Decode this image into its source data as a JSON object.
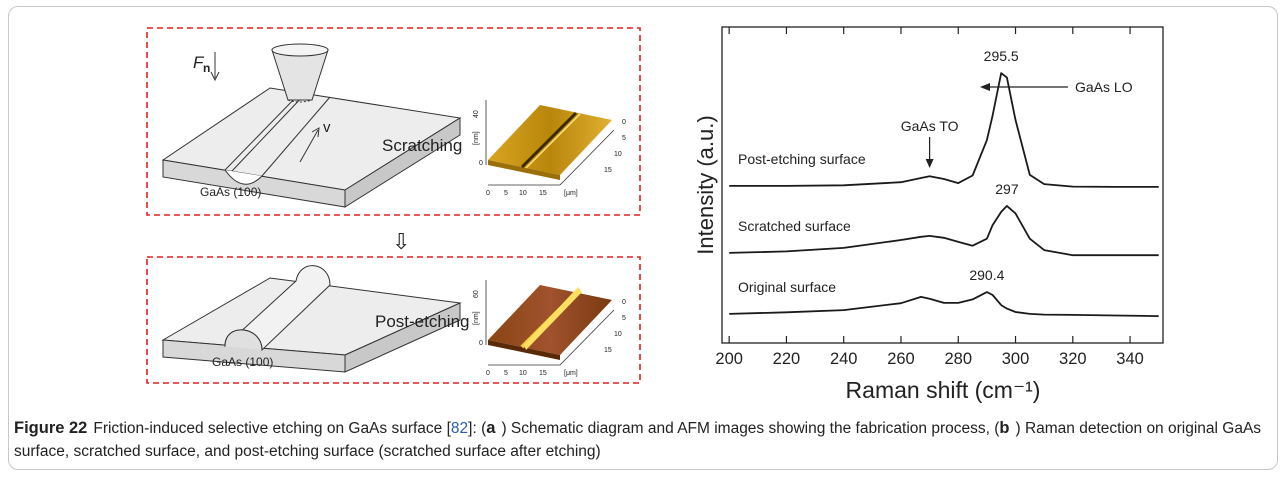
{
  "figure": {
    "scratch_step": {
      "force_label": "F",
      "force_subscript": "n",
      "velocity_label": "v",
      "substrate_label": "GaAs (100)",
      "step_label": "Scratching",
      "afm_z_unit": "[nm]",
      "afm_z_ticks": [
        "0",
        "40"
      ],
      "afm_x_ticks": [
        "0",
        "5",
        "10",
        "15"
      ],
      "afm_x_unit": "[μm]",
      "afm_depth_ticks": [
        "0",
        "5",
        "10",
        "15"
      ]
    },
    "step_arrow": "⇩",
    "etch_step": {
      "substrate_label": "GaAs (100)",
      "step_label": "Post-etching",
      "afm_z_unit": "[nm]",
      "afm_z_ticks": [
        "0",
        "60"
      ],
      "afm_x_ticks": [
        "0",
        "5",
        "10",
        "15"
      ],
      "afm_x_unit": "[μm]",
      "afm_depth_ticks": [
        "0",
        "5",
        "10",
        "15"
      ]
    }
  },
  "chart_data": {
    "type": "line",
    "xlabel": "Raman shift (cm⁻¹)",
    "ylabel": "Intensity (a.u.)",
    "x": [
      200,
      220,
      240,
      260,
      267,
      270,
      275,
      280,
      285,
      290,
      292,
      295,
      297,
      300,
      305,
      310,
      320,
      335,
      350
    ],
    "series": [
      {
        "name": "Post-etching surface",
        "color": "#1a1a1a",
        "values": [
          49.7,
          49.7,
          49.9,
          50.9,
          52.2,
          52.8,
          51.9,
          50.6,
          53,
          64.2,
          72,
          85.4,
          84,
          70.6,
          53.2,
          50.3,
          49.5,
          49.4,
          49.4
        ]
      },
      {
        "name": "Scratched surface",
        "color": "#1a1a1a",
        "values": [
          28.5,
          29.0,
          30.1,
          32.6,
          33.6,
          33.9,
          33.3,
          32.0,
          30.8,
          33.0,
          37.3,
          41.5,
          43.4,
          41.0,
          33.0,
          29.4,
          27.8,
          27.8,
          27.8
        ]
      },
      {
        "name": "Original surface",
        "color": "#1a1a1a",
        "values": [
          9.2,
          9.7,
          10.4,
          12.6,
          14.6,
          14.0,
          12.7,
          12.7,
          13.8,
          16.1,
          15.2,
          12.0,
          10.9,
          9.8,
          9.2,
          9.0,
          8.9,
          8.7,
          8.5
        ]
      }
    ],
    "peak_labels": [
      "295.5",
      "297",
      "290.4"
    ],
    "annotations": [
      "GaAs TO",
      "GaAs LO"
    ],
    "xlim": [
      197.5,
      351.5
    ],
    "xticks": [
      200,
      220,
      240,
      260,
      280,
      300,
      320,
      340
    ],
    "ylim": [
      0,
      100
    ],
    "grid": false
  },
  "caption": {
    "label": "Figure 22",
    "segments": [
      "Friction-induced selective etching on GaAs surface [",
      "82",
      "]: (",
      "a",
      ") Schematic diagram and AFM images showing the fabrication process, (",
      "b",
      ") Raman detection on original GaAs surface, scratched surface, and post-etching surface (scratched surface after etching)"
    ]
  }
}
